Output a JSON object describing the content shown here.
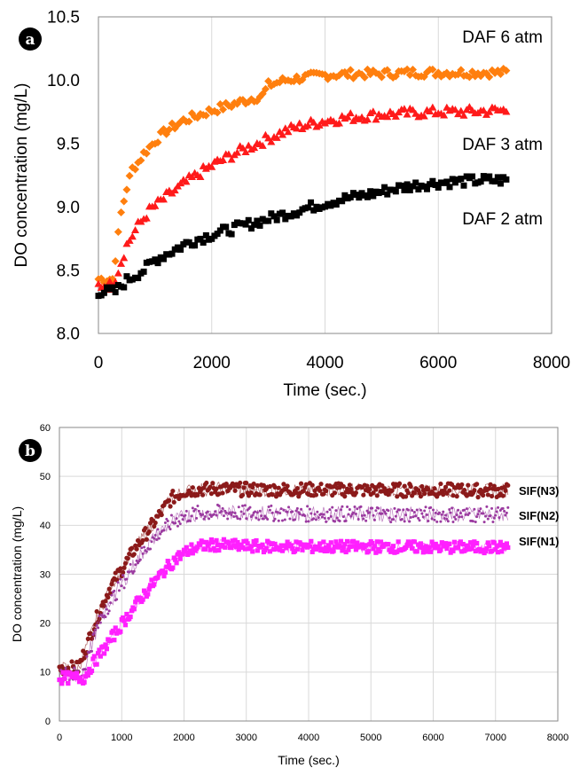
{
  "chart_data": [
    {
      "type": "scatter",
      "panel_label": "a",
      "xlabel": "Time (sec.)",
      "ylabel": "DO concentration (mg/L)",
      "xlim": [
        0,
        8000
      ],
      "ylim": [
        8.0,
        10.5
      ],
      "x_ticks": [
        "0",
        "2000",
        "4000",
        "6000",
        "8000"
      ],
      "y_ticks": [
        "8.0",
        "8.5",
        "9.0",
        "9.5",
        "10.0",
        "10.5"
      ],
      "grid": "vertical",
      "series": [
        {
          "name": "DAF 6 atm",
          "color": "#FF7F0E",
          "marker": "diamond",
          "x": [
            0,
            250,
            300,
            400,
            500,
            600,
            700,
            800,
            1000,
            1200,
            1500,
            1800,
            2000,
            2300,
            2600,
            2900,
            3000,
            3300,
            3600,
            4000,
            4500,
            5000,
            5500,
            6000,
            6500,
            7000,
            7200
          ],
          "y": [
            8.43,
            8.43,
            8.6,
            8.95,
            9.15,
            9.3,
            9.35,
            9.42,
            9.52,
            9.6,
            9.68,
            9.73,
            9.76,
            9.8,
            9.84,
            9.88,
            9.96,
            10.0,
            10.02,
            10.04,
            10.05,
            10.05,
            10.06,
            10.06,
            10.06,
            10.06,
            10.06
          ]
        },
        {
          "name": "DAF 3 atm",
          "color": "#FF1A1A",
          "marker": "triangle",
          "x": [
            0,
            250,
            350,
            500,
            700,
            900,
            1200,
            1500,
            1800,
            2100,
            2400,
            2700,
            3000,
            3300,
            3600,
            4000,
            4500,
            5000,
            5500,
            6000,
            6500,
            7000,
            7200
          ],
          "y": [
            8.38,
            8.38,
            8.5,
            8.7,
            8.85,
            8.97,
            9.08,
            9.18,
            9.27,
            9.35,
            9.42,
            9.48,
            9.54,
            9.6,
            9.64,
            9.68,
            9.71,
            9.73,
            9.74,
            9.75,
            9.75,
            9.76,
            9.76
          ]
        },
        {
          "name": "DAF 2 atm",
          "color": "#000000",
          "marker": "square",
          "x": [
            0,
            300,
            500,
            800,
            1000,
            1300,
            1600,
            2000,
            2400,
            2800,
            3200,
            3600,
            4000,
            4400,
            4800,
            5200,
            5600,
            6000,
            6400,
            6800,
            7200
          ],
          "y": [
            8.33,
            8.33,
            8.42,
            8.5,
            8.58,
            8.65,
            8.72,
            8.78,
            8.83,
            8.88,
            8.93,
            8.98,
            9.03,
            9.07,
            9.1,
            9.14,
            9.17,
            9.19,
            9.2,
            9.21,
            9.21
          ]
        }
      ]
    },
    {
      "type": "scatter",
      "panel_label": "b",
      "xlabel": "Time (sec.)",
      "ylabel": "DO concentration (mg/L)",
      "xlim": [
        0,
        8000
      ],
      "ylim": [
        0,
        60
      ],
      "x_ticks": [
        "0",
        "1000",
        "2000",
        "3000",
        "4000",
        "5000",
        "6000",
        "7000",
        "8000"
      ],
      "y_ticks": [
        "0",
        "10",
        "20",
        "30",
        "40",
        "50",
        "60"
      ],
      "grid": "both",
      "series": [
        {
          "name": "SIF(N3)",
          "color": "#8B1A1A",
          "marker": "circle",
          "x": [
            0,
            300,
            400,
            600,
            800,
            1000,
            1200,
            1400,
            1600,
            1800,
            2000,
            2200,
            2500,
            3000,
            4000,
            5000,
            6000,
            7000,
            7200
          ],
          "y": [
            10.8,
            10.8,
            14,
            21,
            27,
            31,
            35,
            38.5,
            42,
            45.5,
            47,
            47.3,
            47.5,
            47.3,
            47.3,
            47.2,
            47.2,
            47.1,
            47.1
          ]
        },
        {
          "name": "SIF(N2)",
          "color": "#9B3BA0",
          "marker": "small",
          "x": [
            0,
            350,
            450,
            600,
            800,
            1000,
            1200,
            1400,
            1600,
            1800,
            2000,
            2200,
            2500,
            3000,
            4000,
            5000,
            6000,
            7000,
            7200
          ],
          "y": [
            9.5,
            9.5,
            13,
            19,
            24,
            28,
            32,
            35.5,
            38.5,
            40.5,
            41.8,
            42.4,
            42.6,
            42.5,
            42.3,
            42.3,
            42.2,
            42.2,
            42.2
          ]
        },
        {
          "name": "SIF(N1)",
          "color": "#FF20FF",
          "marker": "square",
          "x": [
            0,
            400,
            500,
            700,
            900,
            1100,
            1300,
            1500,
            1700,
            1900,
            2100,
            2300,
            2500,
            3000,
            4000,
            5000,
            6000,
            7000,
            7200
          ],
          "y": [
            8.8,
            8.8,
            11,
            14.5,
            18,
            21.5,
            25,
            28,
            31,
            33.5,
            35,
            35.8,
            36,
            35.7,
            35.6,
            35.6,
            35.5,
            35.5,
            35.5
          ]
        }
      ]
    }
  ]
}
